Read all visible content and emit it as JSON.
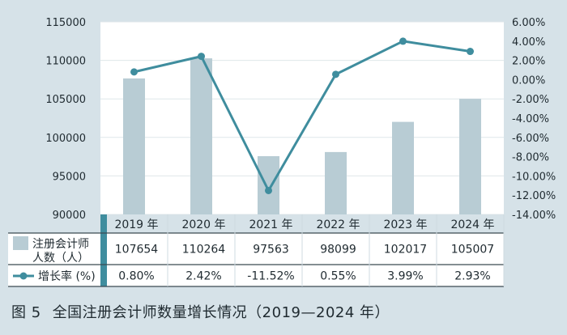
{
  "caption": {
    "figure_number": "图 5",
    "title": "全国注册会计师数量增长情况（2019—2024 年）"
  },
  "colors": {
    "background": "#d6e2e8",
    "plot_background": "#ffffff",
    "bar": "#b8ccd4",
    "line": "#3f8d9e",
    "table_row_alt": "#d6e2e8",
    "accent_bar": "#3f8d9e"
  },
  "chart_data": {
    "type": "bar",
    "categories": [
      "2019 年",
      "2020 年",
      "2021 年",
      "2022 年",
      "2023 年",
      "2024 年"
    ],
    "series": [
      {
        "name": "注册会计师人数（人）",
        "name_lines": [
          "注册会计师",
          "人数（人）"
        ],
        "type": "bar",
        "axis": "left",
        "values": [
          107654,
          110264,
          97563,
          98099,
          102017,
          105007
        ],
        "labels": [
          "107654",
          "110264",
          "97563",
          "98099",
          "102017",
          "105007"
        ]
      },
      {
        "name": "增长率 (%)",
        "type": "line",
        "axis": "right",
        "values": [
          0.8,
          2.42,
          -11.52,
          0.55,
          3.99,
          2.93
        ],
        "labels": [
          "0.80%",
          "2.42%",
          "-11.52%",
          "0.55%",
          "3.99%",
          "2.93%"
        ]
      }
    ],
    "left_axis": {
      "ylim": [
        90000,
        115000
      ],
      "ticks": [
        90000,
        95000,
        100000,
        105000,
        110000,
        115000
      ],
      "tick_labels": [
        "90000",
        "95000",
        "100000",
        "105000",
        "110000",
        "115000"
      ]
    },
    "right_axis": {
      "ylim": [
        -14,
        6
      ],
      "ticks": [
        -14,
        -12,
        -10,
        -8,
        -6,
        -4,
        -2,
        0,
        2,
        4,
        6
      ],
      "tick_labels": [
        "-14.00%",
        "-12.00%",
        "-10.00%",
        "-8.00%",
        "-6.00%",
        "-4.00%",
        "-2.00%",
        "0.00%",
        "2.00%",
        "4.00%",
        "6.00%"
      ]
    },
    "grid": true,
    "legend": "data table below chart"
  }
}
